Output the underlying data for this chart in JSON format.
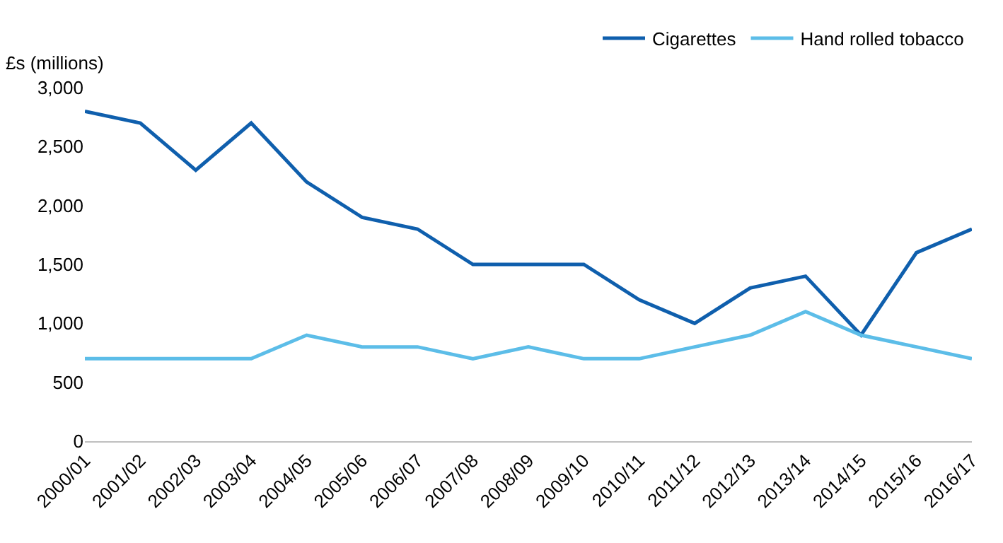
{
  "chart_data": {
    "type": "line",
    "ylabel": "£s (millions)",
    "categories": [
      "2000/01",
      "2001/02",
      "2002/03",
      "2003/04",
      "2004/05",
      "2005/06",
      "2006/07",
      "2007/08",
      "2008/09",
      "2009/10",
      "2010/11",
      "2011/12",
      "2012/13",
      "2013/14",
      "2014/15",
      "2015/16",
      "2016/17"
    ],
    "series": [
      {
        "name": "Cigarettes",
        "color": "#0f5fad",
        "values": [
          2800,
          2700,
          2300,
          2700,
          2200,
          1900,
          1800,
          1500,
          1500,
          1500,
          1200,
          1000,
          1300,
          1400,
          900,
          1600,
          1800
        ]
      },
      {
        "name": "Hand rolled tobacco",
        "color": "#5cbde8",
        "values": [
          700,
          700,
          700,
          700,
          900,
          800,
          800,
          700,
          800,
          700,
          700,
          800,
          900,
          1100,
          900,
          800,
          700
        ]
      }
    ],
    "ylim": [
      0,
      3000
    ],
    "yticks": [
      {
        "value": 0,
        "label": "0"
      },
      {
        "value": 500,
        "label": "500"
      },
      {
        "value": 1000,
        "label": "1,000"
      },
      {
        "value": 1500,
        "label": "1,500"
      },
      {
        "value": 2000,
        "label": "2,000"
      },
      {
        "value": 2500,
        "label": "2,500"
      },
      {
        "value": 3000,
        "label": "3,000"
      }
    ],
    "legend": "top right",
    "marker": "none",
    "line_style": "solid"
  }
}
